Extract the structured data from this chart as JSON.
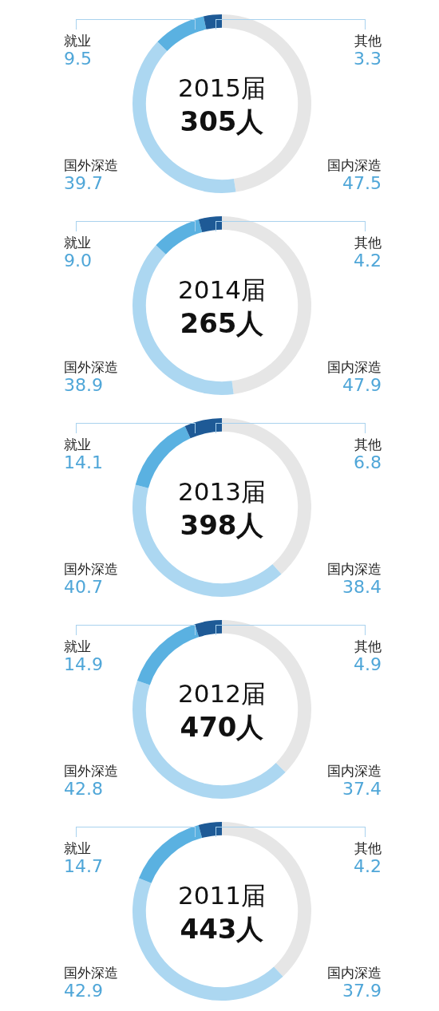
{
  "chart_data": [
    {
      "type": "donut",
      "title": "2015届",
      "subtitle": "305人",
      "categories": [
        "国内深造",
        "国外深造",
        "就业",
        "其他"
      ],
      "values": [
        47.5,
        39.7,
        9.5,
        3.3
      ],
      "value_labels": [
        "47.5",
        "39.7",
        "9.5",
        "3.3"
      ],
      "colors": [
        "#e6e6e6",
        "#acd7f1",
        "#5ab1e1",
        "#1e5a96"
      ],
      "legend": false
    },
    {
      "type": "donut",
      "title": "2014届",
      "subtitle": "265人",
      "categories": [
        "国内深造",
        "国外深造",
        "就业",
        "其他"
      ],
      "values": [
        47.9,
        38.9,
        9.0,
        4.2
      ],
      "value_labels": [
        "47.9",
        "38.9",
        "9.0",
        "4.2"
      ],
      "colors": [
        "#e6e6e6",
        "#acd7f1",
        "#5ab1e1",
        "#1e5a96"
      ],
      "legend": false
    },
    {
      "type": "donut",
      "title": "2013届",
      "subtitle": "398人",
      "categories": [
        "国内深造",
        "国外深造",
        "就业",
        "其他"
      ],
      "values": [
        38.4,
        40.7,
        14.1,
        6.8
      ],
      "value_labels": [
        "38.4",
        "40.7",
        "14.1",
        "6.8"
      ],
      "colors": [
        "#e6e6e6",
        "#acd7f1",
        "#5ab1e1",
        "#1e5a96"
      ],
      "legend": false
    },
    {
      "type": "donut",
      "title": "2012届",
      "subtitle": "470人",
      "categories": [
        "国内深造",
        "国外深造",
        "就业",
        "其他"
      ],
      "values": [
        37.4,
        42.8,
        14.9,
        4.9
      ],
      "value_labels": [
        "37.4",
        "42.8",
        "14.9",
        "4.9"
      ],
      "colors": [
        "#e6e6e6",
        "#acd7f1",
        "#5ab1e1",
        "#1e5a96"
      ],
      "legend": false
    },
    {
      "type": "donut",
      "title": "2011届",
      "subtitle": "443人",
      "categories": [
        "国内深造",
        "国外深造",
        "就业",
        "其他"
      ],
      "values": [
        37.9,
        42.9,
        14.7,
        4.2
      ],
      "value_labels": [
        "37.9",
        "42.9",
        "14.7",
        "4.2"
      ],
      "colors": [
        "#e6e6e6",
        "#acd7f1",
        "#5ab1e1",
        "#1e5a96"
      ],
      "legend": false
    }
  ]
}
